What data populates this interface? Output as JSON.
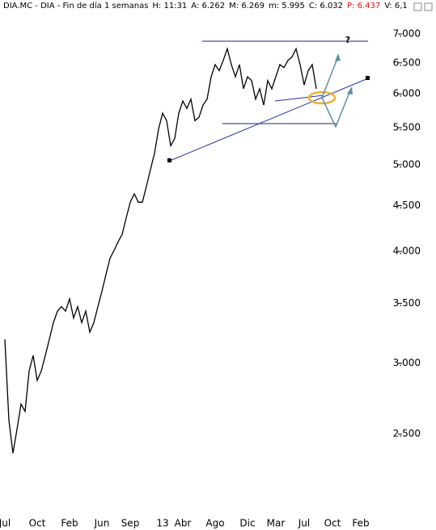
{
  "chart_data": {
    "type": "line",
    "header": [
      "DIA.MC - DIA - Fin de día 1 semanas",
      "H: 11:31",
      "A: 6.262",
      "M: 6.269",
      "m: 5.995",
      "C: 6.032",
      "P: 6.437",
      "V: 6,1"
    ],
    "annotation": "?",
    "log_scale": true,
    "categories": [
      "Jul",
      null,
      null,
      null,
      null,
      null,
      null,
      null,
      "Oct",
      null,
      null,
      null,
      null,
      null,
      null,
      null,
      "Feb",
      null,
      null,
      null,
      null,
      null,
      null,
      null,
      "Jun",
      null,
      null,
      null,
      null,
      null,
      null,
      "Sep",
      null,
      null,
      null,
      null,
      null,
      null,
      null,
      "13",
      null,
      null,
      null,
      null,
      "Abr",
      null,
      null,
      null,
      null,
      null,
      null,
      null,
      "Ago",
      null,
      null,
      null,
      null,
      null,
      null,
      null,
      "Dic",
      null,
      null,
      null,
      null,
      null,
      null,
      "Mar",
      null,
      null,
      null,
      null,
      null,
      null,
      "Jul",
      null,
      null,
      null,
      null,
      null,
      null,
      "Oct",
      null,
      null,
      null,
      null,
      null,
      null,
      "Feb",
      null,
      null,
      null,
      null,
      null,
      null,
      null,
      null,
      null,
      null
    ],
    "series": [
      {
        "name": "DIA.MC",
        "color": "#000000",
        "values": [
          3.19,
          2.59,
          2.38,
          2.53,
          2.7,
          2.65,
          2.94,
          3.06,
          2.87,
          2.94,
          3.06,
          3.19,
          3.33,
          3.43,
          3.47,
          3.43,
          3.54,
          3.37,
          3.47,
          3.33,
          3.43,
          3.25,
          3.33,
          3.47,
          3.61,
          3.77,
          3.93,
          4.01,
          4.1,
          4.18,
          4.36,
          4.54,
          4.64,
          4.54,
          4.54,
          4.73,
          4.94,
          5.15,
          5.48,
          5.71,
          5.6,
          5.25,
          5.35,
          5.71,
          5.89,
          5.78,
          5.92,
          5.6,
          5.65,
          5.83,
          5.92,
          6.27,
          6.47,
          6.37,
          6.54,
          6.74,
          6.47,
          6.27,
          6.47,
          6.08,
          6.27,
          6.21,
          5.92,
          6.08,
          5.83,
          6.21,
          6.08,
          6.27,
          6.47,
          6.42,
          6.54,
          6.6,
          6.74,
          6.47,
          6.14,
          6.37,
          6.47,
          6.08,
          null,
          null,
          null,
          null,
          null,
          null,
          null,
          null,
          null,
          null,
          null,
          null,
          null,
          null,
          null,
          null,
          null,
          null,
          null,
          null,
          null
        ]
      }
    ],
    "ylim": [
      2.04,
      7.36
    ],
    "yticks": [
      {
        "value": 2.5,
        "label": "2.500"
      },
      {
        "value": 3,
        "label": "3.000"
      },
      {
        "value": 3.5,
        "label": "3.500"
      },
      {
        "value": 4,
        "label": "4.000"
      },
      {
        "value": 4.5,
        "label": "4.500"
      },
      {
        "value": 5,
        "label": "5.000"
      },
      {
        "value": 5.5,
        "label": "5.500"
      },
      {
        "value": 6,
        "label": "6.000"
      },
      {
        "value": 6.5,
        "label": "6.500"
      },
      {
        "value": 7,
        "label": "7.000"
      }
    ]
  }
}
